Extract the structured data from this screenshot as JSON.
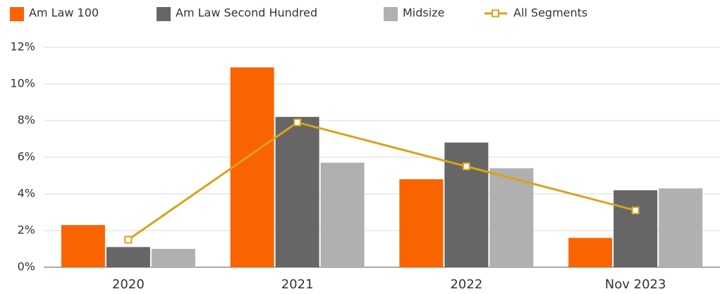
{
  "chart_data": {
    "type": "bar",
    "categories": [
      "2020",
      "2021",
      "2022",
      "Nov 2023"
    ],
    "series": [
      {
        "name": "Am Law 100",
        "type": "bar",
        "color": "#f96400",
        "values": [
          2.3,
          10.9,
          4.8,
          1.6
        ]
      },
      {
        "name": "Am Law Second Hundred",
        "type": "bar",
        "color": "#666666",
        "values": [
          1.1,
          8.2,
          6.8,
          4.2
        ]
      },
      {
        "name": "Midsize",
        "type": "bar",
        "color": "#b0b0b0",
        "values": [
          1.0,
          5.7,
          5.4,
          4.3
        ]
      },
      {
        "name": "All Segments",
        "type": "line",
        "color": "#d9a31a",
        "values": [
          1.5,
          7.9,
          5.5,
          3.1
        ]
      }
    ],
    "ylim": [
      0,
      12
    ],
    "yticks": [
      {
        "value": 0,
        "label": "0%"
      },
      {
        "value": 2,
        "label": "2%"
      },
      {
        "value": 4,
        "label": "4%"
      },
      {
        "value": 6,
        "label": "6%"
      },
      {
        "value": 8,
        "label": "8%"
      },
      {
        "value": 10,
        "label": "10%"
      },
      {
        "value": 12,
        "label": "12%"
      }
    ],
    "grid": true,
    "legend": "top"
  }
}
